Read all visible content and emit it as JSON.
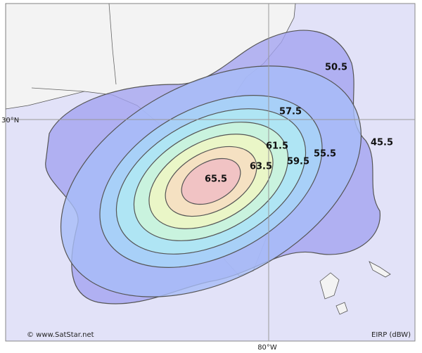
{
  "map": {
    "latitude_label": "30°N",
    "longitude_label": "80°W",
    "contours": [
      {
        "label": "45.5"
      },
      {
        "label": "50.5"
      },
      {
        "label": "55.5"
      },
      {
        "label": "57.5"
      },
      {
        "label": "59.5"
      },
      {
        "label": "61.5"
      },
      {
        "label": "63.5"
      },
      {
        "label": "65.5"
      }
    ],
    "credit": "© www.SatStar.net",
    "unit_label": "EIRP (dBW)"
  }
}
